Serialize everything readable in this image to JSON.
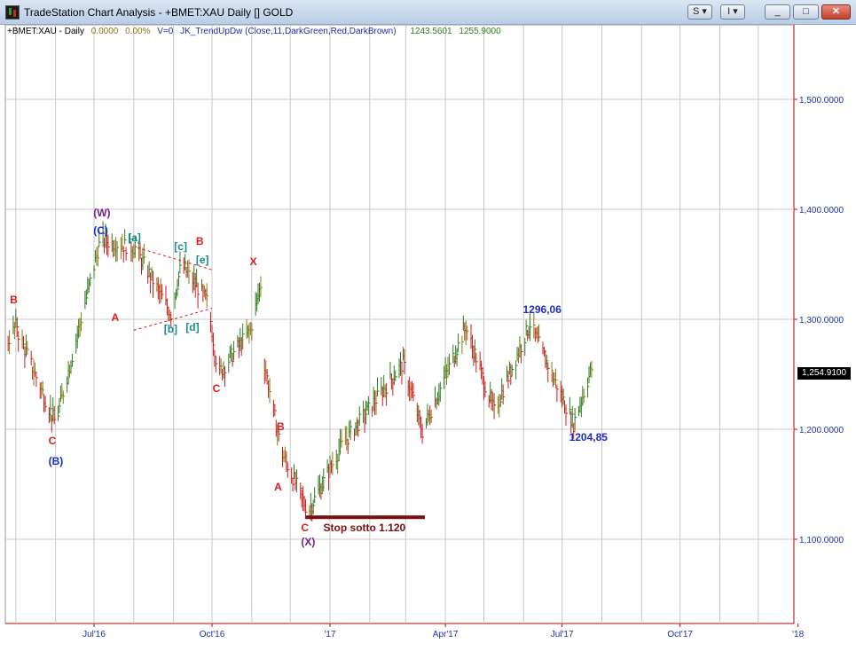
{
  "window": {
    "title": "TradeStation Chart Analysis - +BMET:XAU Daily [] GOLD",
    "buttons": {
      "s_label": "S",
      "i_label": "I",
      "minimize": "_",
      "maximize": "□",
      "close": "✕"
    }
  },
  "legend": {
    "symbol": "+BMET:XAU - Daily",
    "change": "0.0000",
    "change_pct": "0.00%",
    "volume": "V=0",
    "indicator": "JK_TrendUpDw (Close,11,DarkGreen,Red,DarkBrown)",
    "value1": "1243.5601",
    "value2": "1255.9000"
  },
  "colors": {
    "up": "#2e7d1e",
    "down": "#cc1a1a",
    "neutral": "#8a7a18",
    "grid": "#c8c8c8",
    "axis": "#c00000",
    "price_label": "#1d2fa8",
    "wave_red": "#e01a1a",
    "wave_teal": "#168c8c",
    "wave_blue": "#1c2fc4",
    "wave_purple": "#7a1f8c"
  },
  "chart_data": {
    "type": "ohlc",
    "symbol": "+BMET:XAU",
    "interval": "Daily",
    "x_ticks": [
      "Jul'16",
      "Oct'16",
      "'17",
      "Apr'17",
      "Jul'17",
      "Oct'17",
      "'18"
    ],
    "y_ticks": [
      "1,500.0000",
      "1,400.0000",
      "1,300.0000",
      "1,200.0000",
      "1,100.0000"
    ],
    "ylim": [
      1050,
      1575
    ],
    "last_price": "1,254.9100",
    "key_points": [
      {
        "x": "2016-05-02",
        "y": 1290
      },
      {
        "x": "2016-06-01",
        "y": 1205
      },
      {
        "x": "2016-07-06",
        "y": 1372
      },
      {
        "x": "2016-08-02",
        "y": 1365
      },
      {
        "x": "2016-08-30",
        "y": 1305
      },
      {
        "x": "2016-09-07",
        "y": 1350
      },
      {
        "x": "2016-09-28",
        "y": 1315
      },
      {
        "x": "2016-10-04",
        "y": 1265
      },
      {
        "x": "2016-10-07",
        "y": 1252
      },
      {
        "x": "2016-10-31",
        "y": 1290
      },
      {
        "x": "2016-11-09",
        "y": 1337
      },
      {
        "x": "2016-11-10",
        "y": 1265
      },
      {
        "x": "2016-11-24",
        "y": 1180
      },
      {
        "x": "2016-12-15",
        "y": 1125
      },
      {
        "x": "2017-01-10",
        "y": 1185
      },
      {
        "x": "2017-02-27",
        "y": 1260
      },
      {
        "x": "2017-03-14",
        "y": 1198
      },
      {
        "x": "2017-04-17",
        "y": 1293
      },
      {
        "x": "2017-05-09",
        "y": 1216
      },
      {
        "x": "2017-06-06",
        "y": 1296
      },
      {
        "x": "2017-07-10",
        "y": 1205
      },
      {
        "x": "2017-07-24",
        "y": 1255
      }
    ],
    "wave_labels": [
      {
        "text": "B",
        "color": "red",
        "x": "2016-05-02",
        "y": 1317
      },
      {
        "text": "C",
        "color": "red",
        "x": "2016-06-01",
        "y": 1189
      },
      {
        "text": "(B)",
        "color": "blue",
        "x": "2016-06-01",
        "y": 1170
      },
      {
        "text": "(W)",
        "color": "purple",
        "x": "2016-07-06",
        "y": 1396
      },
      {
        "text": "(C)",
        "color": "blue",
        "x": "2016-07-06",
        "y": 1380
      },
      {
        "text": "A",
        "color": "red",
        "x": "2016-07-20",
        "y": 1301
      },
      {
        "text": "[a]",
        "color": "teal",
        "x": "2016-08-02",
        "y": 1373
      },
      {
        "text": "[b]",
        "color": "teal",
        "x": "2016-08-30",
        "y": 1290
      },
      {
        "text": "[c]",
        "color": "teal",
        "x": "2016-09-07",
        "y": 1365
      },
      {
        "text": "[d]",
        "color": "teal",
        "x": "2016-09-16",
        "y": 1292
      },
      {
        "text": "B",
        "color": "red",
        "x": "2016-09-24",
        "y": 1370
      },
      {
        "text": "[e]",
        "color": "teal",
        "x": "2016-09-24",
        "y": 1353
      },
      {
        "text": "C",
        "color": "red",
        "x": "2016-10-07",
        "y": 1236
      },
      {
        "text": "X",
        "color": "red",
        "x": "2016-11-05",
        "y": 1352
      },
      {
        "text": "B",
        "color": "red",
        "x": "2016-11-26",
        "y": 1202
      },
      {
        "text": "A",
        "color": "red",
        "x": "2016-11-24",
        "y": 1147
      },
      {
        "text": "C",
        "color": "red",
        "x": "2016-12-15",
        "y": 1110
      },
      {
        "text": "(X)",
        "color": "purple",
        "x": "2016-12-15",
        "y": 1097
      },
      {
        "text": "1296,06",
        "color": "blue",
        "x": "2017-06-06",
        "y": 1308
      },
      {
        "text": "1204,85",
        "color": "blue",
        "x": "2017-07-12",
        "y": 1192
      }
    ],
    "annotations": [
      {
        "text": "Stop sotto 1.120",
        "type": "horizontal_bar",
        "from": "2016-12-13",
        "to": "2017-03-16",
        "y": 1120
      },
      {
        "type": "trendline_upper",
        "from": "2016-08-04",
        "to": "2016-10-01",
        "y_from": 1365,
        "y_to": 1345
      },
      {
        "type": "trendline_lower",
        "from": "2016-08-01",
        "to": "2016-10-01",
        "y_from": 1290,
        "y_to": 1310
      }
    ]
  }
}
